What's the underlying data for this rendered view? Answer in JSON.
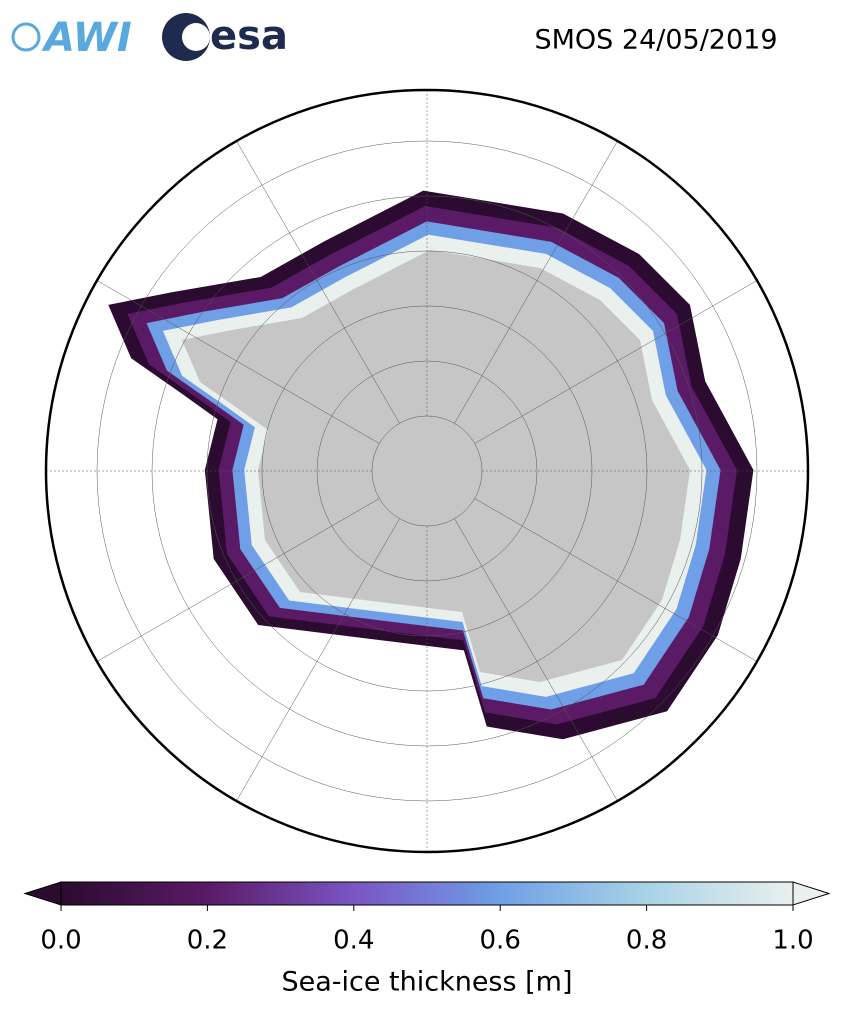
{
  "header": {
    "logos": [
      "AWI",
      "esa"
    ],
    "title": "SMOS 24/05/2019"
  },
  "colorbar": {
    "label": "Sea-ice thickness [m]",
    "lim": [
      0,
      1
    ],
    "ticks": [
      {
        "value": 0,
        "label": "0.0"
      },
      {
        "value": 0.2,
        "label": "0.2"
      },
      {
        "value": 0.4,
        "label": "0.4"
      },
      {
        "value": 0.6,
        "label": "0.6"
      },
      {
        "value": 0.8,
        "label": "0.8"
      },
      {
        "value": 1,
        "label": "1.0"
      }
    ],
    "colormap": [
      "#2b0b2f",
      "#5a1a66",
      "#7a55c4",
      "#6f9fe6",
      "#a9d3e6",
      "#e9f0ee"
    ]
  }
}
